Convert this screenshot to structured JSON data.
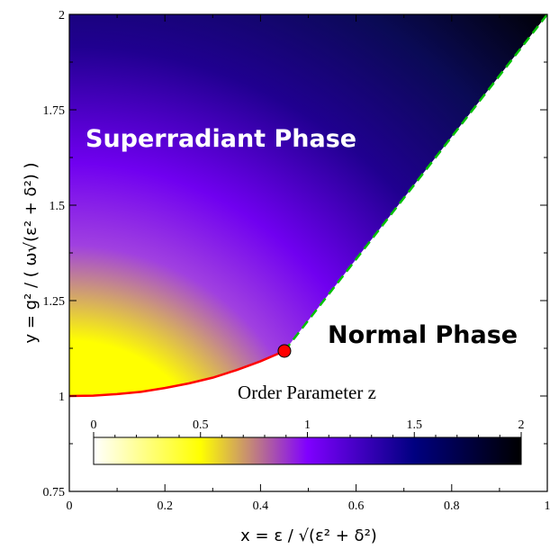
{
  "chart_data": {
    "type": "heatmap",
    "title": "",
    "xlabel": "x = ε / √(ε² + δ²)",
    "ylabel": "y = g² / ( ω√(ε² + δ²) )",
    "xlim": [
      0,
      1
    ],
    "ylim": [
      0.75,
      2
    ],
    "x_ticks": [
      0,
      0.2,
      0.4,
      0.6,
      0.8,
      1
    ],
    "x_tick_labels": [
      "0",
      "0.2",
      "0.4",
      "0.6",
      "0.8",
      "1"
    ],
    "y_ticks": [
      0.75,
      1,
      1.25,
      1.5,
      1.75,
      2
    ],
    "y_tick_labels": [
      "0.75",
      "1",
      "1.25",
      "1.5",
      "1.75",
      "2"
    ],
    "annotations": [
      "Superradiant Phase",
      "Normal Phase"
    ],
    "colorbar": {
      "title": "Order Parameter z",
      "range": [
        0,
        2
      ],
      "ticks": [
        0,
        0.5,
        1,
        1.5,
        2
      ],
      "tick_labels": [
        "0",
        "0.5",
        "1",
        "1.5",
        "2"
      ],
      "colors": [
        "#ffffff",
        "#ffff00",
        "#8000ff",
        "#000080",
        "#000000"
      ]
    },
    "boundary_solid": {
      "color": "#ff0000",
      "x": [
        0,
        0.05,
        0.1,
        0.15,
        0.2,
        0.25,
        0.3,
        0.35,
        0.4,
        0.45
      ],
      "y": [
        1.0,
        1.001,
        1.005,
        1.011,
        1.021,
        1.033,
        1.048,
        1.068,
        1.091,
        1.118
      ]
    },
    "boundary_dashed": {
      "color": "#00c000",
      "x": [
        0.45,
        1
      ],
      "y": [
        1.118,
        2.0
      ]
    },
    "critical_point": {
      "x": 0.45,
      "y": 1.118,
      "color": "#ff0000"
    }
  }
}
